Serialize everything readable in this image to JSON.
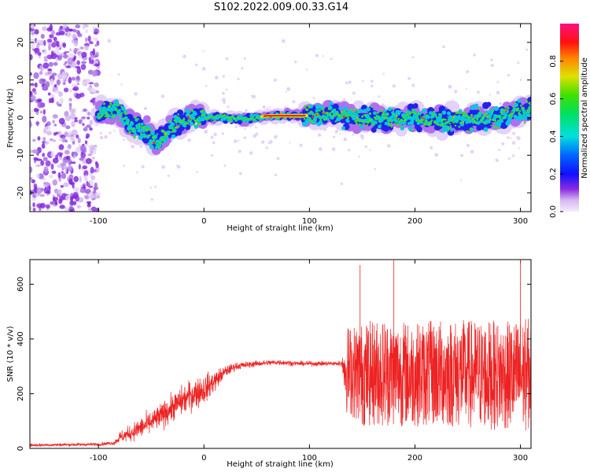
{
  "title": "S102.2022.009.00.33.G14",
  "colors": {
    "snr_line": "#ee2222",
    "axis": "#000000",
    "background": "#ffffff"
  },
  "chart_data": [
    {
      "type": "heatmap",
      "title": "S102.2022.009.00.33.G14",
      "xlabel": "Height of straight line (km)",
      "ylabel": "Frequency (Hz)",
      "xlim": [
        -165,
        310
      ],
      "ylim": [
        -25,
        25
      ],
      "xticks": [
        -100,
        0,
        100,
        200,
        300
      ],
      "xtick_labels": [
        "-100",
        "0",
        "100",
        "200",
        "300"
      ],
      "yticks": [
        -20,
        -10,
        0,
        10,
        20
      ],
      "ytick_labels": [
        "-20",
        "-10",
        "0",
        "10",
        "20"
      ],
      "colorbar": {
        "label": "Normalized spectral amplitude",
        "range": [
          0,
          1
        ],
        "ticks": [
          0.0,
          0.2,
          0.4,
          0.6,
          0.8
        ],
        "tick_labels": [
          "0.0",
          "0.2",
          "0.4",
          "0.6",
          "0.8"
        ],
        "colormap": "rainbow (violet-blue-cyan-green-yellow-red-magenta)"
      },
      "ridge": {
        "description": "dominant frequency ridge versus height",
        "x": [
          -100,
          -90,
          -80,
          -70,
          -60,
          -50,
          -45,
          -40,
          -30,
          -20,
          -10,
          0,
          20,
          40,
          60,
          80,
          95,
          120,
          150,
          180,
          200,
          220,
          250,
          280,
          305
        ],
        "y": [
          0.5,
          2,
          2,
          -2,
          -3,
          -5,
          -7,
          -5,
          -2,
          -1,
          0.5,
          0,
          0,
          -0.5,
          0.5,
          0.5,
          0.5,
          1,
          0,
          -0.5,
          0,
          -1,
          -0.5,
          0,
          2
        ]
      },
      "noise_region": {
        "x_range": [
          -165,
          -100
        ],
        "description": "scattered low-amplitude noise across all frequencies"
      }
    },
    {
      "type": "line",
      "xlabel": "Height of straight line (km)",
      "ylabel": "SNR (10 * v/v)",
      "xlim": [
        -165,
        310
      ],
      "ylim": [
        0,
        690
      ],
      "xticks": [
        -100,
        0,
        100,
        200,
        300
      ],
      "xtick_labels": [
        "-100",
        "0",
        "100",
        "200",
        "300"
      ],
      "yticks": [
        0,
        200,
        400,
        600
      ],
      "ytick_labels": [
        "0",
        "200",
        "400",
        "600"
      ],
      "envelope": {
        "description": "approximate SNR trend (mean level and fluctuation amplitude) versus height",
        "x": [
          -165,
          -100,
          -85,
          -80,
          -70,
          -60,
          -50,
          -40,
          -30,
          -20,
          -10,
          0,
          10,
          20,
          30,
          50,
          70,
          90,
          110,
          130,
          135,
          150,
          170,
          200,
          230,
          260,
          290,
          310
        ],
        "mean": [
          12,
          15,
          20,
          40,
          55,
          75,
          95,
          120,
          150,
          175,
          200,
          215,
          245,
          280,
          300,
          310,
          315,
          310,
          310,
          310,
          290,
          270,
          280,
          270,
          275,
          270,
          265,
          270
        ],
        "spread": [
          8,
          8,
          10,
          30,
          40,
          55,
          60,
          65,
          70,
          75,
          80,
          75,
          55,
          30,
          20,
          15,
          15,
          12,
          12,
          12,
          160,
          190,
          200,
          190,
          200,
          200,
          200,
          210
        ]
      },
      "peaks": {
        "x": [
          148,
          180,
          300
        ],
        "y": [
          670,
          690,
          690
        ]
      }
    }
  ]
}
